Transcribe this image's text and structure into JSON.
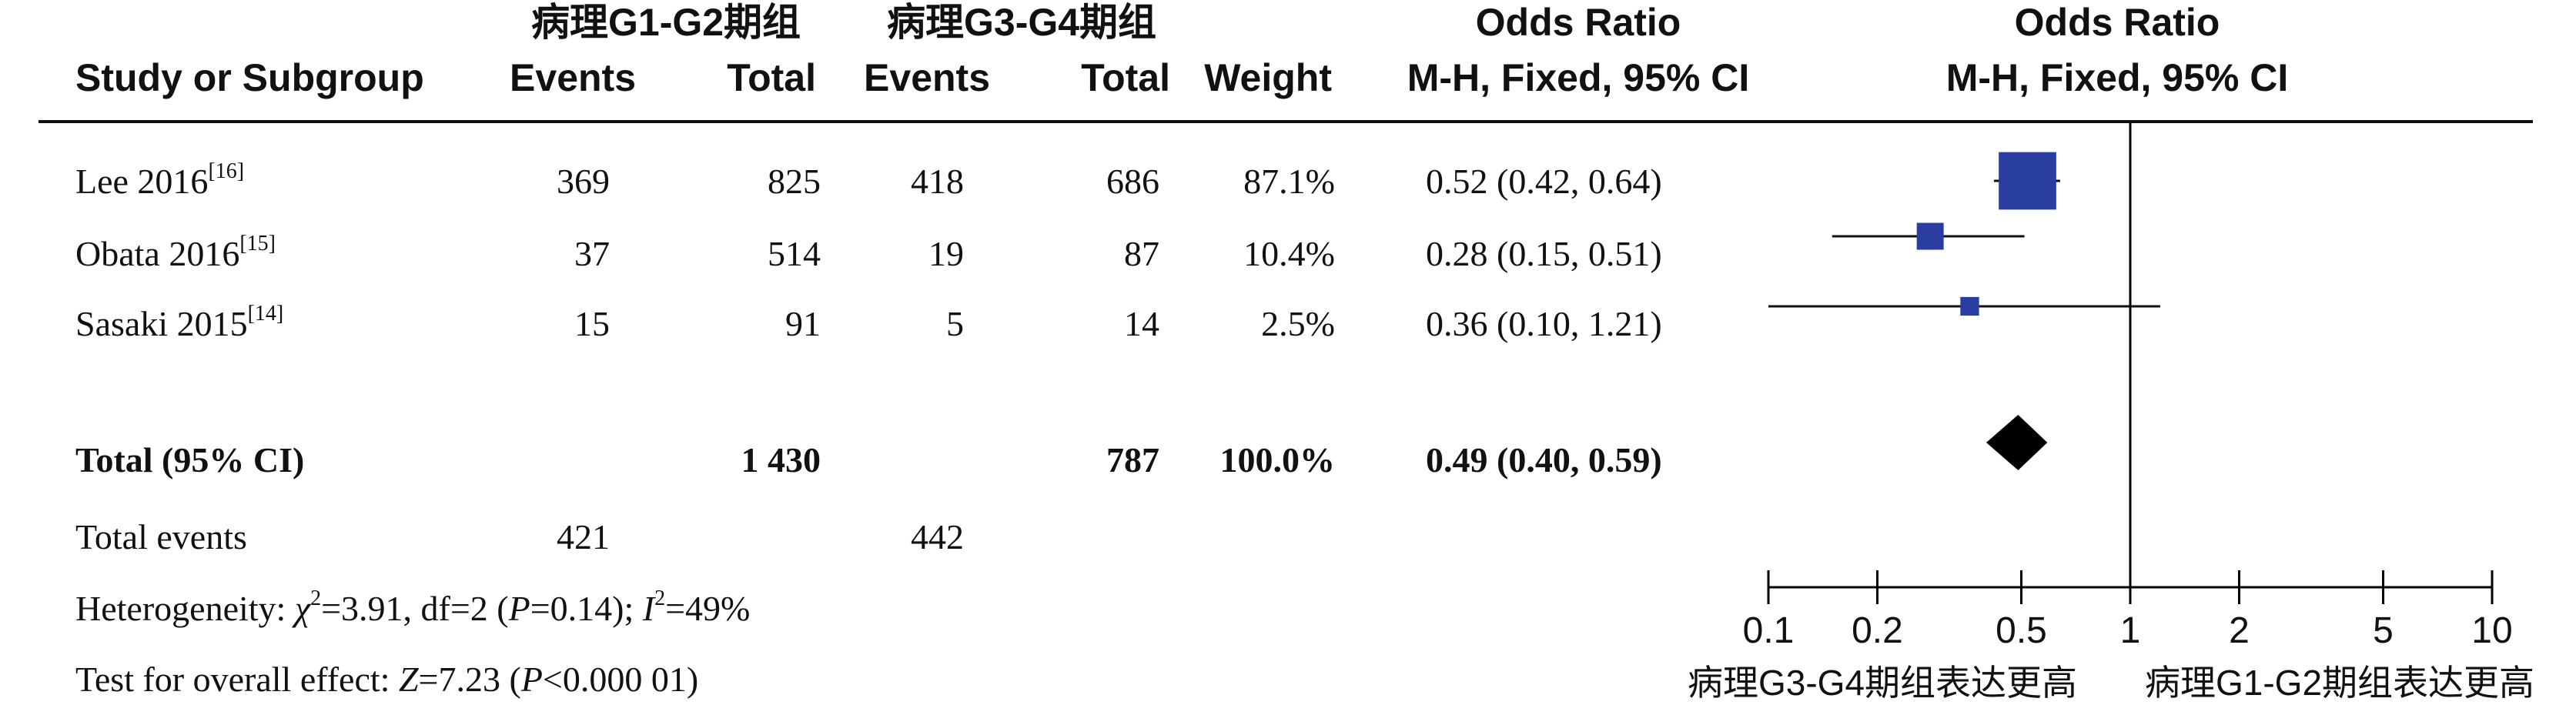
{
  "headers": {
    "group1": "病理G1-G2期组",
    "group2": "病理G3-G4期组",
    "study": "Study or Subgroup",
    "events": "Events",
    "total": "Total",
    "weight": "Weight",
    "or_title": "Odds Ratio",
    "or_method": "M-H, Fixed, 95% CI",
    "plot_title": "Odds Ratio",
    "plot_method": "M-H, Fixed, 95% CI"
  },
  "studies": [
    {
      "name": "Lee 2016",
      "ref": "[16]",
      "e1": "369",
      "t1": "825",
      "e2": "418",
      "t2": "686",
      "weight": "87.1%",
      "ci": "0.52 (0.42, 0.64)"
    },
    {
      "name": "Obata 2016",
      "ref": "[15]",
      "e1": "37",
      "t1": "514",
      "e2": "19",
      "t2": "87",
      "weight": "10.4%",
      "ci": "0.28 (0.15, 0.51)"
    },
    {
      "name": "Sasaki 2015",
      "ref": "[14]",
      "e1": "15",
      "t1": "91",
      "e2": "5",
      "t2": "14",
      "weight": "2.5%",
      "ci": "0.36 (0.10, 1.21)"
    }
  ],
  "total": {
    "label": "Total (95% CI)",
    "t1": "1 430",
    "t2": "787",
    "weight": "100.0%",
    "ci": "0.49 (0.40, 0.59)"
  },
  "events": {
    "label": "Total events",
    "e1": "421",
    "e2": "442"
  },
  "heterogeneity": {
    "prefix": "Heterogeneity: ",
    "chi_sym": "χ",
    "chi_sup": "2",
    "chi_val": "=3.91, df=2 (",
    "p_sym": "P",
    "p_val": "=0.14); ",
    "i_sym": "I",
    "i_sup": "2",
    "i_val": "=49%"
  },
  "overall": {
    "prefix": "Test for overall effect: ",
    "z_sym": "Z",
    "z_val": "=7.23 (",
    "p_sym": "P",
    "p_val": "<0.000 01)"
  },
  "axis_labels": {
    "left": "病理G3-G4期组表达更高",
    "right": "病理G1-G2期组表达更高"
  },
  "chart_data": {
    "type": "forest",
    "scale": "log",
    "xlim": [
      0.1,
      10
    ],
    "ticks": [
      0.1,
      0.2,
      0.5,
      1,
      2,
      5,
      10
    ],
    "tick_labels": [
      "0.1",
      "0.2",
      "0.5",
      "1",
      "2",
      "5",
      "10"
    ],
    "reference": 1,
    "series": [
      {
        "name": "Lee 2016",
        "or": 0.52,
        "lo": 0.42,
        "hi": 0.64,
        "weight": 87.1
      },
      {
        "name": "Obata 2016",
        "or": 0.28,
        "lo": 0.15,
        "hi": 0.51,
        "weight": 10.4
      },
      {
        "name": "Sasaki 2015",
        "or": 0.36,
        "lo": 0.1,
        "hi": 1.21,
        "weight": 2.5
      }
    ],
    "pooled": {
      "or": 0.49,
      "lo": 0.4,
      "hi": 0.59
    },
    "colors": {
      "study": "#2a3ea0",
      "pooled": "#000000"
    }
  }
}
